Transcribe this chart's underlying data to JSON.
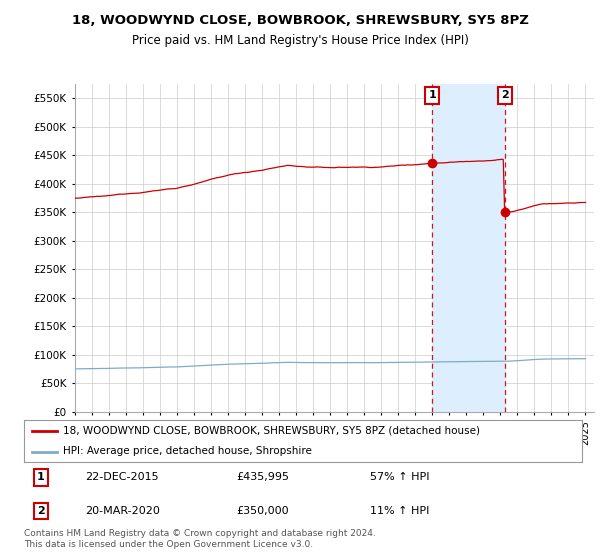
{
  "title_line1": "18, WOODWYND CLOSE, BOWBROOK, SHREWSBURY, SY5 8PZ",
  "title_line2": "Price paid vs. HM Land Registry's House Price Index (HPI)",
  "red_line_label": "18, WOODWYND CLOSE, BOWBROOK, SHREWSBURY, SY5 8PZ (detached house)",
  "blue_line_label": "HPI: Average price, detached house, Shropshire",
  "red_color": "#cc0000",
  "blue_color": "#7eaacc",
  "shade_color": "#ddeeff",
  "marker1_date": "22-DEC-2015",
  "marker1_price": 435995,
  "marker1_label": "£435,995",
  "marker1_hpi": "57% ↑ HPI",
  "marker1_x": 2016.0,
  "marker2_date": "20-MAR-2020",
  "marker2_price": 350000,
  "marker2_label": "£350,000",
  "marker2_hpi": "11% ↑ HPI",
  "marker2_x": 2020.25,
  "ylim_min": 0,
  "ylim_max": 575000,
  "yticks": [
    0,
    50000,
    100000,
    150000,
    200000,
    250000,
    300000,
    350000,
    400000,
    450000,
    500000,
    550000
  ],
  "ytick_labels": [
    "£0",
    "£50K",
    "£100K",
    "£150K",
    "£200K",
    "£250K",
    "£300K",
    "£350K",
    "£400K",
    "£450K",
    "£500K",
    "£550K"
  ],
  "xtick_start": 1995,
  "xtick_end": 2025,
  "footer": "Contains HM Land Registry data © Crown copyright and database right 2024.\nThis data is licensed under the Open Government Licence v3.0.",
  "bg_color": "#ffffff",
  "grid_color": "#cccccc"
}
